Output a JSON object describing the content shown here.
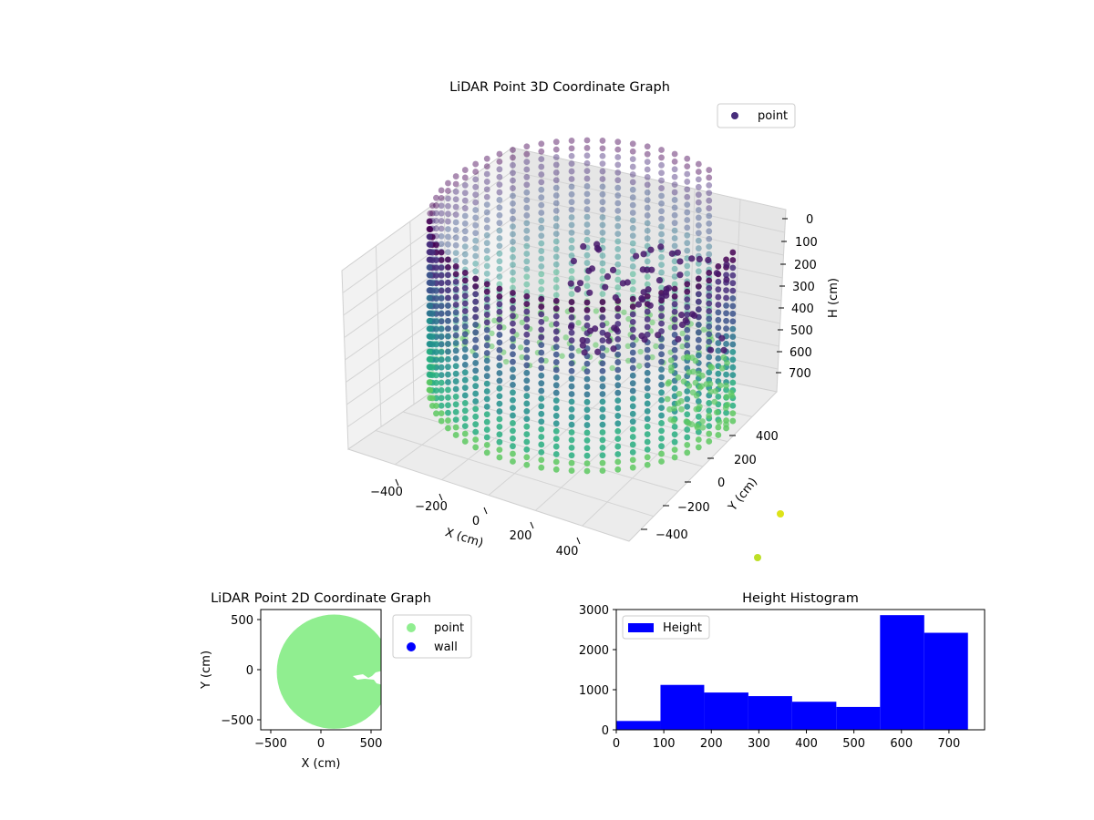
{
  "chart_data": [
    {
      "type": "scatter3d",
      "title": "LiDAR Point 3D Coordinate Graph",
      "xlabel": "X (cm)",
      "ylabel": "Y (cm)",
      "zlabel": "H (cm)",
      "xlim": [
        -560,
        560
      ],
      "ylim": [
        -560,
        560
      ],
      "zlim": [
        780,
        0
      ],
      "xticks": [
        "−400",
        "−200",
        "0",
        "200",
        "400"
      ],
      "yticks": [
        "−400",
        "−200",
        "0",
        "200",
        "400"
      ],
      "zticks": [
        "0",
        "100",
        "200",
        "300",
        "400",
        "500",
        "600",
        "700"
      ],
      "legend": [
        "point"
      ],
      "legend_position": "upper-right",
      "colormap": "viridis",
      "colors": {
        "top": "#472d7b",
        "mid": "#2a788e",
        "lower": "#35b779",
        "floor": "#5ec962",
        "outlier": "#dde318"
      },
      "shape": "cylindrical wall of points, radius about 420 cm, height 0 to 760 cm, with a floor disk and a doorway gap with scattered points near x=420, y=-80"
    },
    {
      "type": "scatter",
      "title": "LiDAR Point 2D Coordinate Graph",
      "xlabel": "X (cm)",
      "ylabel": "Y (cm)",
      "xlim": [
        -600,
        600
      ],
      "ylim": [
        -600,
        600
      ],
      "xticks": [
        "−500",
        "0",
        "500"
      ],
      "yticks": [
        "500",
        "0",
        "−500"
      ],
      "series": [
        {
          "name": "point",
          "color": "#90ee90",
          "shape": "filled disk, center (130, -20), radius about 570 cm, clipped at x=600"
        },
        {
          "name": "wall",
          "color": "#0000ff"
        }
      ],
      "legend_position": "outside-right"
    },
    {
      "type": "bar",
      "title": "Height Histogram",
      "bins": [
        {
          "from": 0,
          "to": 93,
          "count": 220
        },
        {
          "from": 93,
          "to": 185,
          "count": 1120
        },
        {
          "from": 185,
          "to": 278,
          "count": 930
        },
        {
          "from": 278,
          "to": 370,
          "count": 840
        },
        {
          "from": 370,
          "to": 463,
          "count": 700
        },
        {
          "from": 463,
          "to": 555,
          "count": 570
        },
        {
          "from": 555,
          "to": 648,
          "count": 2860
        },
        {
          "from": 648,
          "to": 740,
          "count": 2420
        }
      ],
      "xlim": [
        0,
        775
      ],
      "ylim": [
        0,
        3000
      ],
      "xticks": [
        "0",
        "100",
        "200",
        "300",
        "400",
        "500",
        "600",
        "700"
      ],
      "yticks": [
        "0",
        "1000",
        "2000",
        "3000"
      ],
      "legend": [
        "Height"
      ],
      "legend_position": "upper-left",
      "color": "#0000ff"
    }
  ]
}
